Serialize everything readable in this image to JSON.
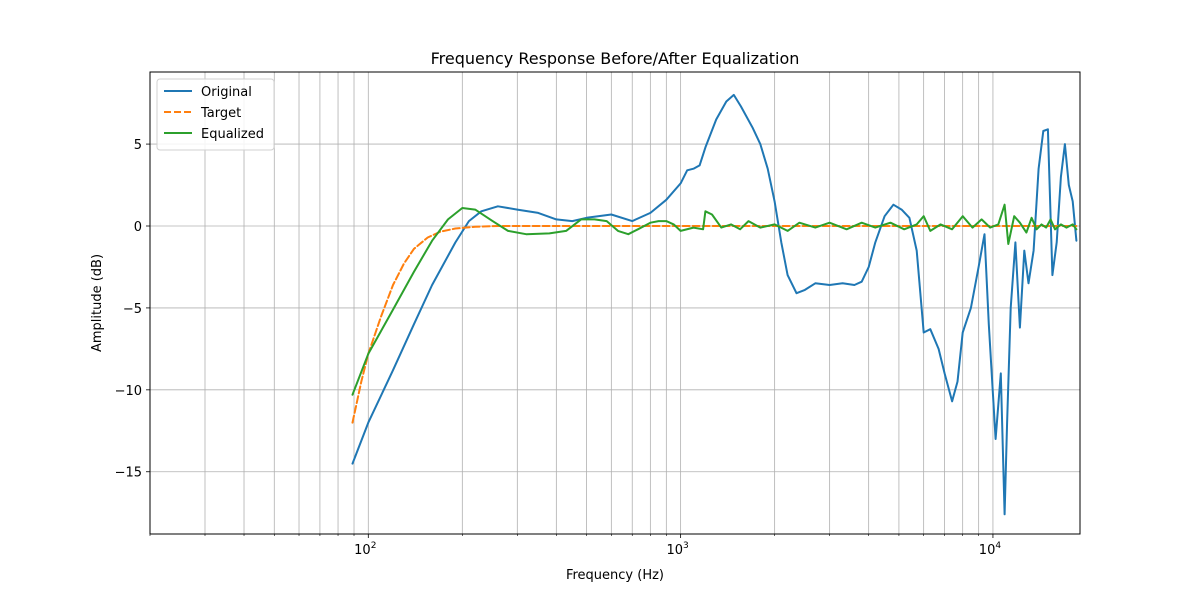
{
  "chart_data": {
    "type": "line",
    "title": "Frequency Response Before/After Equalization",
    "xlabel": "Frequency (Hz)",
    "ylabel": "Amplitude (dB)",
    "xscale": "log",
    "xlim": [
      20,
      19000
    ],
    "ylim": [
      -18.8,
      9.4
    ],
    "x_ticks": [
      {
        "value": 100,
        "base": "10",
        "exp": "2"
      },
      {
        "value": 1000,
        "base": "10",
        "exp": "3"
      },
      {
        "value": 10000,
        "base": "10",
        "exp": "4"
      }
    ],
    "y_ticks": [
      {
        "value": 5,
        "label": "5"
      },
      {
        "value": 0,
        "label": "0"
      },
      {
        "value": -5,
        "label": "−5"
      },
      {
        "value": -10,
        "label": "−10"
      },
      {
        "value": -15,
        "label": "−15"
      }
    ],
    "grid": true,
    "legend_position": "upper left",
    "series": [
      {
        "name": "Original",
        "color": "#1f77b4",
        "dash": "solid",
        "points": [
          [
            89,
            -14.5
          ],
          [
            100,
            -12
          ],
          [
            120,
            -8.8
          ],
          [
            140,
            -6
          ],
          [
            160,
            -3.6
          ],
          [
            190,
            -1
          ],
          [
            210,
            0.3
          ],
          [
            230,
            0.9
          ],
          [
            260,
            1.2
          ],
          [
            300,
            1
          ],
          [
            350,
            0.8
          ],
          [
            400,
            0.4
          ],
          [
            450,
            0.3
          ],
          [
            500,
            0.5
          ],
          [
            600,
            0.7
          ],
          [
            700,
            0.3
          ],
          [
            800,
            0.8
          ],
          [
            900,
            1.6
          ],
          [
            1000,
            2.6
          ],
          [
            1050,
            3.4
          ],
          [
            1100,
            3.5
          ],
          [
            1150,
            3.7
          ],
          [
            1200,
            4.8
          ],
          [
            1300,
            6.5
          ],
          [
            1400,
            7.6
          ],
          [
            1480,
            8.0
          ],
          [
            1560,
            7.3
          ],
          [
            1700,
            6
          ],
          [
            1800,
            5
          ],
          [
            1900,
            3.5
          ],
          [
            2000,
            1.5
          ],
          [
            2100,
            -1
          ],
          [
            2200,
            -3
          ],
          [
            2350,
            -4.1
          ],
          [
            2500,
            -3.9
          ],
          [
            2700,
            -3.5
          ],
          [
            3000,
            -3.6
          ],
          [
            3300,
            -3.5
          ],
          [
            3600,
            -3.6
          ],
          [
            3800,
            -3.4
          ],
          [
            4000,
            -2.5
          ],
          [
            4200,
            -1
          ],
          [
            4500,
            0.6
          ],
          [
            4800,
            1.3
          ],
          [
            5100,
            1.0
          ],
          [
            5400,
            0.5
          ],
          [
            5700,
            -1.5
          ],
          [
            6000,
            -6.5
          ],
          [
            6300,
            -6.3
          ],
          [
            6700,
            -7.5
          ],
          [
            7000,
            -9
          ],
          [
            7400,
            -10.7
          ],
          [
            7700,
            -9.5
          ],
          [
            8000,
            -6.5
          ],
          [
            8500,
            -5
          ],
          [
            9000,
            -2.5
          ],
          [
            9400,
            -0.5
          ],
          [
            9700,
            -6
          ],
          [
            10200,
            -13
          ],
          [
            10600,
            -9
          ],
          [
            10900,
            -17.6
          ],
          [
            11100,
            -12
          ],
          [
            11400,
            -5
          ],
          [
            11800,
            -1
          ],
          [
            12200,
            -6.2
          ],
          [
            12600,
            -1.5
          ],
          [
            13000,
            -3.5
          ],
          [
            13500,
            -1.5
          ],
          [
            14000,
            3.5
          ],
          [
            14500,
            5.8
          ],
          [
            15000,
            5.9
          ],
          [
            15500,
            -3
          ],
          [
            16000,
            -1
          ],
          [
            16500,
            3
          ],
          [
            17000,
            5
          ],
          [
            17500,
            2.5
          ],
          [
            18000,
            1.5
          ],
          [
            18500,
            -0.9
          ]
        ]
      },
      {
        "name": "Target",
        "color": "#ff7f0e",
        "dash": "dashed",
        "points": [
          [
            89,
            -12
          ],
          [
            95,
            -9.5
          ],
          [
            100,
            -7.8
          ],
          [
            110,
            -5.5
          ],
          [
            120,
            -3.6
          ],
          [
            130,
            -2.3
          ],
          [
            140,
            -1.4
          ],
          [
            155,
            -0.7
          ],
          [
            170,
            -0.35
          ],
          [
            190,
            -0.15
          ],
          [
            220,
            -0.05
          ],
          [
            260,
            0
          ],
          [
            1000,
            0
          ],
          [
            10000,
            0
          ],
          [
            18500,
            0
          ]
        ]
      },
      {
        "name": "Equalized",
        "color": "#2ca02c",
        "dash": "solid",
        "points": [
          [
            89,
            -10.3
          ],
          [
            100,
            -7.8
          ],
          [
            120,
            -5.1
          ],
          [
            140,
            -2.8
          ],
          [
            160,
            -0.9
          ],
          [
            180,
            0.4
          ],
          [
            200,
            1.1
          ],
          [
            220,
            1.0
          ],
          [
            250,
            0.3
          ],
          [
            280,
            -0.3
          ],
          [
            320,
            -0.5
          ],
          [
            380,
            -0.45
          ],
          [
            430,
            -0.3
          ],
          [
            480,
            0.4
          ],
          [
            530,
            0.4
          ],
          [
            580,
            0.3
          ],
          [
            630,
            -0.3
          ],
          [
            680,
            -0.5
          ],
          [
            730,
            -0.2
          ],
          [
            800,
            0.2
          ],
          [
            850,
            0.3
          ],
          [
            900,
            0.3
          ],
          [
            950,
            0.1
          ],
          [
            1000,
            -0.3
          ],
          [
            1100,
            -0.1
          ],
          [
            1180,
            -0.2
          ],
          [
            1200,
            0.9
          ],
          [
            1260,
            0.7
          ],
          [
            1350,
            -0.1
          ],
          [
            1450,
            0.1
          ],
          [
            1550,
            -0.2
          ],
          [
            1650,
            0.3
          ],
          [
            1800,
            -0.1
          ],
          [
            2000,
            0.1
          ],
          [
            2200,
            -0.3
          ],
          [
            2400,
            0.2
          ],
          [
            2700,
            -0.1
          ],
          [
            3000,
            0.2
          ],
          [
            3400,
            -0.2
          ],
          [
            3800,
            0.2
          ],
          [
            4200,
            -0.1
          ],
          [
            4700,
            0.2
          ],
          [
            5200,
            -0.2
          ],
          [
            5700,
            0.1
          ],
          [
            6000,
            0.6
          ],
          [
            6300,
            -0.3
          ],
          [
            6800,
            0.1
          ],
          [
            7400,
            -0.2
          ],
          [
            8000,
            0.6
          ],
          [
            8600,
            -0.1
          ],
          [
            9200,
            0.4
          ],
          [
            9800,
            -0.1
          ],
          [
            10400,
            0.1
          ],
          [
            10900,
            1.3
          ],
          [
            11200,
            -1.1
          ],
          [
            11700,
            0.6
          ],
          [
            12200,
            0.2
          ],
          [
            12800,
            -0.4
          ],
          [
            13300,
            0.5
          ],
          [
            13800,
            -0.2
          ],
          [
            14300,
            0.1
          ],
          [
            14800,
            -0.1
          ],
          [
            15300,
            0.4
          ],
          [
            15800,
            -0.2
          ],
          [
            16500,
            0.1
          ],
          [
            17200,
            -0.1
          ],
          [
            18000,
            0.1
          ],
          [
            18500,
            -0.2
          ]
        ]
      }
    ]
  }
}
